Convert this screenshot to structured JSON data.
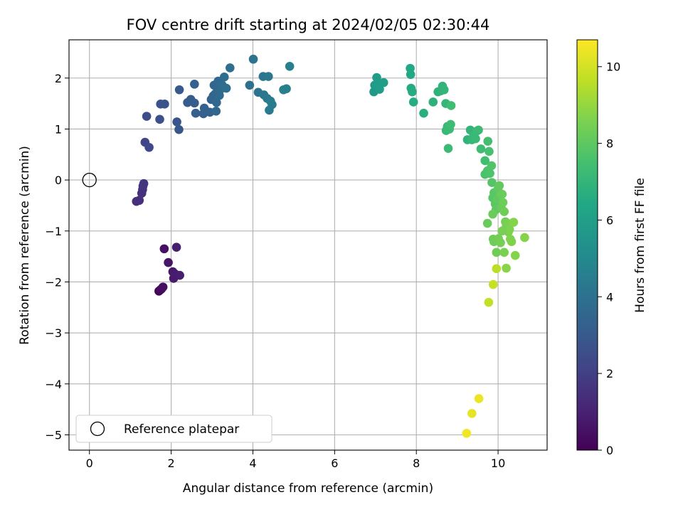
{
  "chart_data": {
    "type": "scatter",
    "title": "FOV centre drift starting at 2024/02/05 02:30:44",
    "xlabel": "Angular distance from reference (arcmin)",
    "ylabel": "Rotation from reference (arcmin)",
    "xlim": [
      -0.5,
      11.2
    ],
    "ylim": [
      -5.3,
      2.75
    ],
    "xticks": [
      0,
      2,
      4,
      6,
      8,
      10
    ],
    "xtick_labels": [
      "0",
      "2",
      "4",
      "6",
      "8",
      "10"
    ],
    "yticks": [
      2,
      1,
      0,
      -1,
      -2,
      -3,
      -4,
      -5
    ],
    "ytick_labels": [
      "2",
      "1",
      "0",
      "−1",
      "−2",
      "−3",
      "−4",
      "−5"
    ],
    "grid": true,
    "colormap": "viridis",
    "colorbar": {
      "label": "Hours from first FF file",
      "range": [
        0,
        10.7
      ],
      "ticks": [
        0,
        2,
        4,
        6,
        8,
        10
      ],
      "tick_labels": [
        "0",
        "2",
        "4",
        "6",
        "8",
        "10"
      ]
    },
    "legend": {
      "position": "lower-left",
      "entries": [
        "Reference platepar"
      ]
    },
    "reference_point": {
      "x": 0,
      "y": 0,
      "label": "Reference platepar"
    },
    "series": [
      {
        "points": [
          [
            1.7,
            -2.18,
            0.1
          ],
          [
            1.73,
            -2.16,
            0.2
          ],
          [
            1.76,
            -2.14,
            0.3
          ],
          [
            1.8,
            -2.1,
            0.4
          ],
          [
            1.83,
            -1.35,
            0.5
          ],
          [
            1.93,
            -1.62,
            0.6
          ],
          [
            2.04,
            -1.8,
            0.7
          ],
          [
            2.06,
            -1.93,
            0.75
          ],
          [
            2.09,
            -1.84,
            0.8
          ],
          [
            2.13,
            -1.32,
            0.85
          ],
          [
            2.21,
            -1.87,
            0.9
          ],
          [
            1.15,
            -0.42,
            1.4
          ],
          [
            1.22,
            -0.4,
            1.45
          ],
          [
            1.28,
            -0.26,
            1.5
          ],
          [
            1.3,
            -0.19,
            1.55
          ],
          [
            1.31,
            -0.12,
            1.6
          ],
          [
            1.33,
            -0.07,
            1.65
          ],
          [
            1.36,
            0.74,
            2.2
          ],
          [
            1.46,
            0.64,
            2.3
          ],
          [
            1.4,
            1.25,
            2.5
          ],
          [
            1.72,
            1.19,
            2.6
          ],
          [
            1.74,
            1.49,
            2.7
          ],
          [
            1.84,
            1.49,
            2.75
          ],
          [
            2.14,
            1.14,
            2.8
          ],
          [
            2.19,
            0.99,
            2.85
          ],
          [
            2.2,
            1.77,
            3.0
          ],
          [
            2.4,
            1.52,
            3.05
          ],
          [
            2.48,
            1.58,
            3.1
          ],
          [
            2.57,
            1.51,
            3.15
          ],
          [
            2.57,
            1.88,
            3.2
          ],
          [
            2.6,
            1.31,
            3.2
          ],
          [
            2.79,
            1.3,
            3.25
          ],
          [
            2.81,
            1.41,
            3.3
          ],
          [
            2.84,
            1.36,
            3.3
          ],
          [
            2.95,
            1.33,
            3.35
          ],
          [
            2.98,
            1.58,
            3.4
          ],
          [
            3.03,
            1.65,
            3.45
          ],
          [
            3.05,
            1.86,
            3.5
          ],
          [
            3.08,
            1.69,
            3.5
          ],
          [
            3.1,
            1.35,
            3.55
          ],
          [
            3.11,
            1.52,
            3.6
          ],
          [
            3.13,
            1.73,
            3.6
          ],
          [
            3.15,
            1.94,
            3.65
          ],
          [
            3.18,
            1.66,
            3.7
          ],
          [
            3.21,
            1.78,
            3.7
          ],
          [
            3.25,
            1.86,
            3.75
          ],
          [
            3.3,
            2.02,
            3.8
          ],
          [
            3.35,
            1.8,
            3.85
          ],
          [
            3.44,
            2.2,
            3.9
          ],
          [
            3.92,
            1.86,
            4.0
          ],
          [
            4.01,
            2.37,
            4.05
          ],
          [
            4.13,
            1.72,
            4.1
          ],
          [
            4.25,
            2.03,
            4.15
          ],
          [
            4.27,
            1.67,
            4.2
          ],
          [
            4.35,
            1.6,
            4.25
          ],
          [
            4.38,
            2.03,
            4.3
          ],
          [
            4.4,
            1.37,
            4.35
          ],
          [
            4.43,
            1.55,
            4.4
          ],
          [
            4.47,
            1.48,
            4.45
          ],
          [
            4.75,
            1.77,
            4.55
          ],
          [
            4.82,
            1.79,
            4.6
          ],
          [
            4.9,
            2.23,
            4.65
          ],
          [
            6.96,
            1.73,
            5.7
          ],
          [
            6.98,
            1.86,
            5.75
          ],
          [
            7.03,
            2.01,
            5.8
          ],
          [
            7.07,
            1.9,
            5.85
          ],
          [
            7.1,
            1.78,
            5.9
          ],
          [
            7.2,
            1.91,
            5.95
          ],
          [
            7.85,
            2.19,
            6.4
          ],
          [
            7.86,
            2.07,
            6.45
          ],
          [
            7.87,
            1.8,
            6.5
          ],
          [
            7.9,
            1.73,
            6.55
          ],
          [
            7.93,
            1.53,
            6.6
          ],
          [
            8.18,
            1.31,
            6.7
          ],
          [
            8.41,
            1.53,
            6.8
          ],
          [
            8.53,
            1.73,
            6.85
          ],
          [
            8.6,
            1.75,
            6.9
          ],
          [
            8.64,
            1.84,
            6.95
          ],
          [
            8.68,
            1.77,
            7.0
          ],
          [
            8.72,
            1.5,
            7.05
          ],
          [
            8.73,
            0.97,
            7.1
          ],
          [
            8.76,
            1.05,
            7.15
          ],
          [
            8.78,
            0.62,
            7.2
          ],
          [
            8.81,
            1.0,
            7.25
          ],
          [
            8.84,
            1.09,
            7.3
          ],
          [
            8.85,
            1.46,
            7.35
          ],
          [
            9.25,
            0.79,
            6.9
          ],
          [
            9.32,
            0.98,
            7.0
          ],
          [
            9.36,
            0.79,
            7.05
          ],
          [
            9.4,
            0.87,
            7.1
          ],
          [
            9.45,
            0.81,
            7.15
          ],
          [
            9.48,
            0.96,
            7.2
          ],
          [
            9.52,
            0.98,
            7.25
          ],
          [
            9.58,
            0.61,
            7.3
          ],
          [
            9.68,
            0.38,
            7.4
          ],
          [
            9.75,
            0.76,
            7.45
          ],
          [
            9.78,
            0.56,
            7.5
          ],
          [
            9.68,
            0.11,
            7.6
          ],
          [
            9.74,
            0.18,
            7.65
          ],
          [
            9.8,
            0.13,
            7.7
          ],
          [
            9.84,
            0.28,
            7.75
          ],
          [
            9.85,
            -0.05,
            7.8
          ],
          [
            9.87,
            -0.35,
            7.85
          ],
          [
            9.9,
            -0.25,
            7.9
          ],
          [
            9.93,
            -0.47,
            7.95
          ],
          [
            9.95,
            -0.58,
            8.0
          ],
          [
            9.98,
            -0.38,
            8.0
          ],
          [
            10.0,
            -0.17,
            8.05
          ],
          [
            10.03,
            -0.11,
            8.1
          ],
          [
            10.05,
            -0.3,
            8.15
          ],
          [
            10.08,
            -0.55,
            8.2
          ],
          [
            10.1,
            -0.28,
            8.25
          ],
          [
            10.12,
            -0.44,
            8.3
          ],
          [
            10.15,
            -0.62,
            8.35
          ],
          [
            10.18,
            -0.82,
            8.4
          ],
          [
            10.2,
            -0.92,
            8.45
          ],
          [
            10.23,
            -0.85,
            8.5
          ],
          [
            10.25,
            -1.02,
            8.55
          ],
          [
            10.28,
            -0.97,
            8.6
          ],
          [
            10.3,
            -1.16,
            8.6
          ],
          [
            10.33,
            -1.21,
            8.65
          ],
          [
            10.38,
            -0.83,
            8.7
          ],
          [
            10.42,
            -1.48,
            8.7
          ],
          [
            10.65,
            -1.13,
            8.75
          ],
          [
            9.74,
            -0.85,
            8.2
          ],
          [
            9.87,
            -0.67,
            8.25
          ],
          [
            9.88,
            -1.16,
            8.3
          ],
          [
            9.9,
            -1.21,
            8.3
          ],
          [
            9.96,
            -1.42,
            8.35
          ],
          [
            10.01,
            -1.15,
            8.4
          ],
          [
            10.06,
            -1.23,
            8.45
          ],
          [
            10.1,
            -1.0,
            8.5
          ],
          [
            10.15,
            -1.42,
            8.55
          ],
          [
            10.2,
            -1.73,
            8.8
          ],
          [
            9.96,
            -1.74,
            9.6
          ],
          [
            9.77,
            -2.4,
            9.7
          ],
          [
            9.88,
            -2.05,
            9.8
          ],
          [
            9.36,
            -4.58,
            10.3
          ],
          [
            9.53,
            -4.29,
            10.4
          ],
          [
            9.23,
            -4.97,
            10.5
          ]
        ]
      }
    ]
  }
}
